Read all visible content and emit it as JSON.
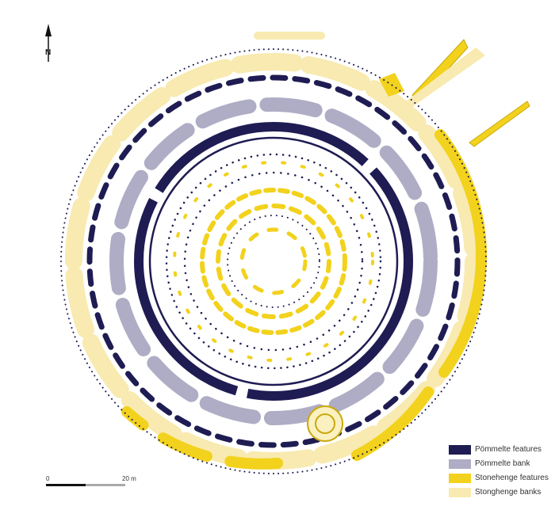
{
  "north": {
    "label": "N"
  },
  "legend": {
    "items": [
      {
        "label": "Pömmelte features",
        "color": "#1e1c52"
      },
      {
        "label": "Pömmelte bank",
        "color": "#aeadc5"
      },
      {
        "label": "Stonehenge features",
        "color": "#f2d21c"
      },
      {
        "label": "Stonghenge banks",
        "color": "#f8eab0"
      }
    ]
  },
  "scale": {
    "start_label": "0",
    "end_label": "20 m"
  }
}
